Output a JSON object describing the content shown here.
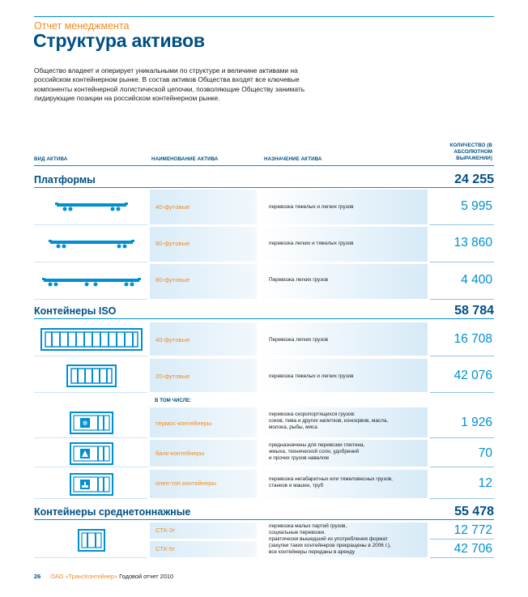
{
  "section": "Отчет менеджмента",
  "title": "Структура активов",
  "intro": "Общество владеет и оперирует уникальными по структуре и величине активами на российском контейнерном рынке. В состав активов Общества входят все ключевые компоненты контейнерной логистической цепочки, позволяющие Обществу занимать лидирующие позиции на российском контейнерном рынке.",
  "columns": {
    "type": "ВИД АКТИВА",
    "name": "НАИМЕНОВАНИЕ АКТИВА",
    "purpose": "НАЗНАЧЕНИЕ АКТИВА",
    "qty": "КОЛИЧЕСТВО (В АБСОЛЮТНОМ ВЫРАЖЕНИИ)"
  },
  "platforms": {
    "name": "Платформы",
    "total": "24 255",
    "rows": [
      {
        "name": "40-футовые",
        "purpose": "перевозка тяжелых и легких грузов",
        "value": "5 995"
      },
      {
        "name": "60-футовые",
        "purpose": "перевозка легких и тяжелых грузов",
        "value": "13 860"
      },
      {
        "name": "80-футовые",
        "purpose": "Перевозка легких грузов",
        "value": "4 400"
      }
    ]
  },
  "iso": {
    "name": "Контейнеры ISO",
    "total": "58 784",
    "rows": [
      {
        "name": "40-футовые",
        "purpose": "Перевозка легких грузов",
        "value": "16 708"
      },
      {
        "name": "20-футовые",
        "purpose": "перевозка тяжелых и легких грузов",
        "value": "42 076"
      }
    ],
    "sub_label": "В ТОМ ЧИСЛЕ:",
    "sub_rows": [
      {
        "name": "термос-контейнеры",
        "purpose_lines": [
          "перевозка скоропортящихся грузов:",
          "соков, пива и других напитков, консервов, масла,",
          "молока, рыбы, мяса"
        ],
        "value": "1 926"
      },
      {
        "name": "балк-контейнеры",
        "purpose_lines": [
          "предназначены для перевозки глютена,",
          "жмыха, технической соли, удобрений",
          "и прочих грузов навалом"
        ],
        "value": "70"
      },
      {
        "name": "опен-топ контейнеры",
        "purpose_lines": [
          "перевозка негабаритных или тяжеловесных грузов,",
          "станков и машин, труб"
        ],
        "value": "12"
      }
    ]
  },
  "medium": {
    "name": "Контейнеры среднетоннажные",
    "total": "55 478",
    "rows": [
      {
        "name": "СТК-3т",
        "value": "12 772"
      },
      {
        "name": "СТК-5т",
        "value": "42 706"
      }
    ],
    "purpose_lines": [
      "перевозка малых партий грузов,",
      "социальные перевозки.",
      "практически вышедший из употребления формат",
      "(закупки таких контейнеров прекращены в 2006 г.),",
      "все контейнеры переданы в аренду"
    ]
  },
  "footer": {
    "page": "26",
    "company": "ОАО «ТрансКонтейнер»",
    "report": "Годовой отчет 2010"
  },
  "colors": {
    "accent_blue": "#008fd0",
    "dark_blue": "#004f84",
    "orange": "#f08c1e"
  }
}
